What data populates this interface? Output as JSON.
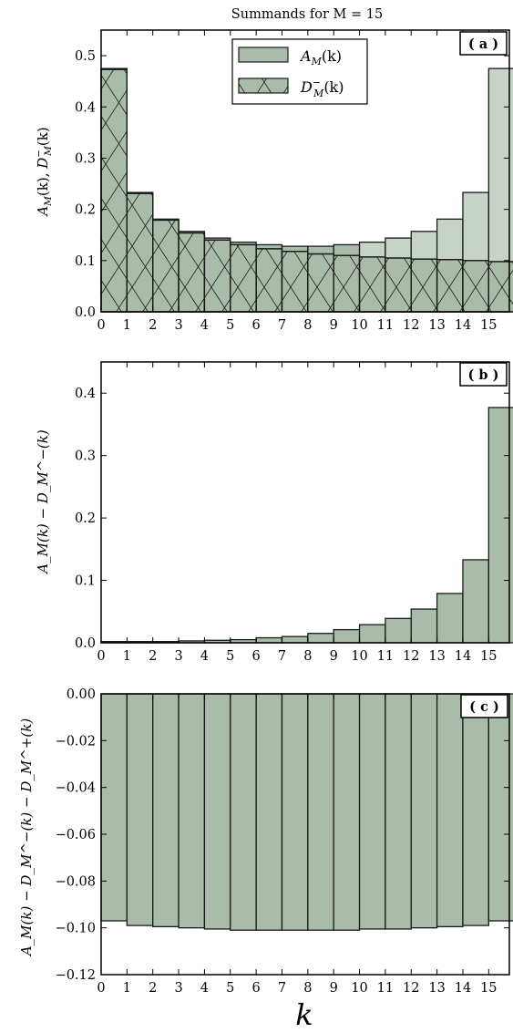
{
  "figure_title": "Summands for M = 15",
  "x_axis_label": "k",
  "colors": {
    "bar_fill": "#a9bba9",
    "bar_fill_light": "#c6d3c6",
    "edge": "#1a1a1a"
  },
  "chart_data": [
    {
      "type": "bar",
      "panel_tag": "( a )",
      "ylabel_lhs": "A",
      "ylabel_lhs_sub": "M",
      "ylabel_rhs": "D",
      "ylabel_rhs_sup": "−",
      "ylabel_rhs_sub": "M",
      "ylabel_arg": "(k)",
      "ylim": [
        0,
        0.55
      ],
      "yticks": [
        "0.0",
        "0.1",
        "0.2",
        "0.3",
        "0.4",
        "0.5"
      ],
      "xticks": [
        "0",
        "1",
        "2",
        "3",
        "4",
        "5",
        "6",
        "7",
        "8",
        "9",
        "10",
        "11",
        "12",
        "13",
        "14",
        "15"
      ],
      "legend_position": "top-center",
      "series": [
        {
          "name": "A_M(k)",
          "legend_main": "A",
          "legend_sub": "M",
          "legend_sup": "",
          "legend_arg": "(k)",
          "values": [
            0.475,
            0.233,
            0.181,
            0.157,
            0.144,
            0.136,
            0.131,
            0.128,
            0.128,
            0.131,
            0.136,
            0.144,
            0.157,
            0.181,
            0.233,
            0.475
          ]
        },
        {
          "name": "D_M^-(k)",
          "legend_main": "D",
          "legend_sub": "M",
          "legend_sup": "−",
          "legend_arg": "(k)",
          "values": [
            0.473,
            0.231,
            0.179,
            0.154,
            0.14,
            0.131,
            0.123,
            0.118,
            0.113,
            0.11,
            0.107,
            0.105,
            0.103,
            0.102,
            0.1,
            0.098
          ]
        }
      ]
    },
    {
      "type": "bar",
      "panel_tag": "( b )",
      "ylabel_text": "A_M(k) − D_M^−(k)",
      "ylim": [
        0,
        0.45
      ],
      "yticks": [
        "0.0",
        "0.1",
        "0.2",
        "0.3",
        "0.4"
      ],
      "xticks": [
        "0",
        "1",
        "2",
        "3",
        "4",
        "5",
        "6",
        "7",
        "8",
        "9",
        "10",
        "11",
        "12",
        "13",
        "14",
        "15"
      ],
      "series": [
        {
          "values": [
            0.002,
            0.002,
            0.002,
            0.003,
            0.004,
            0.005,
            0.008,
            0.01,
            0.015,
            0.021,
            0.029,
            0.039,
            0.054,
            0.079,
            0.133,
            0.377
          ]
        }
      ]
    },
    {
      "type": "bar",
      "panel_tag": "( c )",
      "ylabel_text": "A_M(k) − D_M^−(k) − D_M^+(k)",
      "ylim": [
        -0.12,
        0.0
      ],
      "yticks": [
        "0.00",
        "−0.02",
        "−0.04",
        "−0.06",
        "−0.08",
        "−0.10",
        "−0.12"
      ],
      "xticks": [
        "0",
        "1",
        "2",
        "3",
        "4",
        "5",
        "6",
        "7",
        "8",
        "9",
        "10",
        "11",
        "12",
        "13",
        "14",
        "15"
      ],
      "series": [
        {
          "values": [
            -0.097,
            -0.099,
            -0.0995,
            -0.1,
            -0.1005,
            -0.101,
            -0.101,
            -0.101,
            -0.101,
            -0.101,
            -0.1005,
            -0.1005,
            -0.1,
            -0.0995,
            -0.099,
            -0.097
          ]
        }
      ]
    }
  ]
}
